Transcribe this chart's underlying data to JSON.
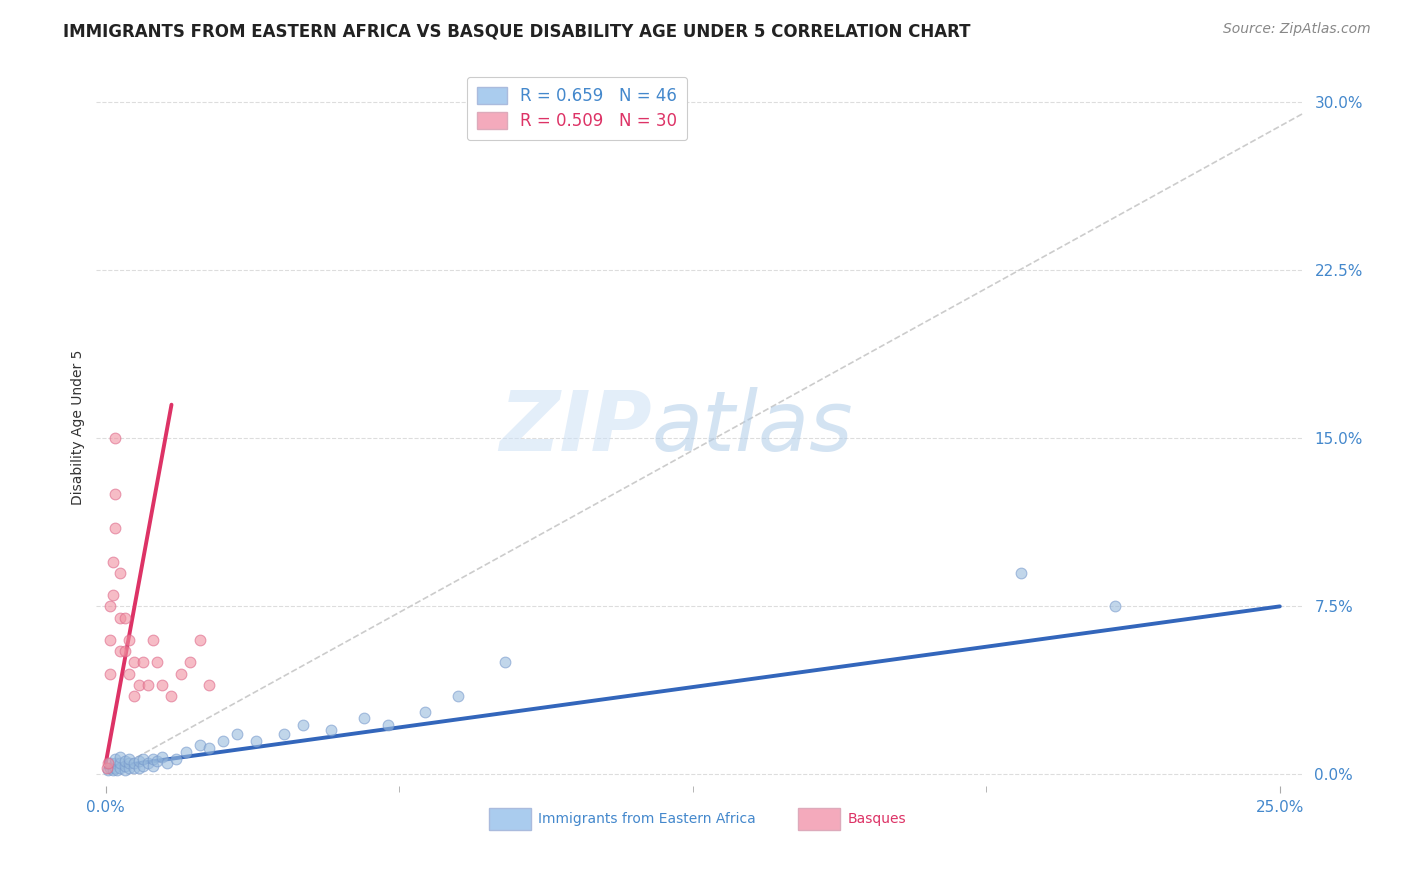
{
  "title": "IMMIGRANTS FROM EASTERN AFRICA VS BASQUE DISABILITY AGE UNDER 5 CORRELATION CHART",
  "source": "Source: ZipAtlas.com",
  "ylabel": "Disability Age Under 5",
  "ytick_labels": [
    "0.0%",
    "7.5%",
    "15.0%",
    "22.5%",
    "30.0%"
  ],
  "ytick_values": [
    0.0,
    0.075,
    0.15,
    0.225,
    0.3
  ],
  "xtick_labels": [
    "0.0%",
    "25.0%"
  ],
  "xtick_values": [
    0.0,
    0.25
  ],
  "xlim": [
    -0.002,
    0.255
  ],
  "ylim": [
    -0.005,
    0.315
  ],
  "watermark_zip": "ZIP",
  "watermark_atlas": "atlas",
  "blue_scatter_x": [
    0.0005,
    0.001,
    0.001,
    0.0015,
    0.002,
    0.002,
    0.002,
    0.0025,
    0.003,
    0.003,
    0.003,
    0.004,
    0.004,
    0.004,
    0.005,
    0.005,
    0.005,
    0.006,
    0.006,
    0.007,
    0.007,
    0.008,
    0.008,
    0.009,
    0.01,
    0.01,
    0.011,
    0.012,
    0.013,
    0.015,
    0.017,
    0.02,
    0.022,
    0.025,
    0.028,
    0.032,
    0.038,
    0.042,
    0.048,
    0.055,
    0.06,
    0.068,
    0.075,
    0.085,
    0.195,
    0.215
  ],
  "blue_scatter_y": [
    0.002,
    0.003,
    0.005,
    0.002,
    0.003,
    0.005,
    0.007,
    0.002,
    0.003,
    0.005,
    0.008,
    0.002,
    0.004,
    0.006,
    0.003,
    0.005,
    0.007,
    0.003,
    0.005,
    0.003,
    0.006,
    0.004,
    0.007,
    0.005,
    0.004,
    0.007,
    0.006,
    0.008,
    0.005,
    0.007,
    0.01,
    0.013,
    0.012,
    0.015,
    0.018,
    0.015,
    0.018,
    0.022,
    0.02,
    0.025,
    0.022,
    0.028,
    0.035,
    0.05,
    0.09,
    0.075
  ],
  "pink_scatter_x": [
    0.0003,
    0.0005,
    0.001,
    0.001,
    0.001,
    0.0015,
    0.0015,
    0.002,
    0.002,
    0.002,
    0.003,
    0.003,
    0.003,
    0.004,
    0.004,
    0.005,
    0.005,
    0.006,
    0.006,
    0.007,
    0.008,
    0.009,
    0.01,
    0.011,
    0.012,
    0.014,
    0.016,
    0.018,
    0.02,
    0.022
  ],
  "pink_scatter_y": [
    0.003,
    0.005,
    0.045,
    0.06,
    0.075,
    0.08,
    0.095,
    0.11,
    0.125,
    0.15,
    0.055,
    0.07,
    0.09,
    0.055,
    0.07,
    0.045,
    0.06,
    0.05,
    0.035,
    0.04,
    0.05,
    0.04,
    0.06,
    0.05,
    0.04,
    0.035,
    0.045,
    0.05,
    0.06,
    0.04
  ],
  "blue_line_x": [
    0.0,
    0.25
  ],
  "blue_line_y": [
    0.003,
    0.075
  ],
  "pink_line_x": [
    0.0,
    0.014
  ],
  "pink_line_y": [
    0.005,
    0.165
  ],
  "diag_line_x": [
    0.0,
    0.255
  ],
  "diag_line_y": [
    0.0,
    0.295
  ],
  "blue_color": "#99bbdd",
  "pink_color": "#f090a0",
  "blue_line_color": "#3366bb",
  "pink_line_color": "#dd3366",
  "diag_line_color": "#cccccc",
  "scatter_size": 60,
  "background_color": "#ffffff",
  "grid_color": "#dddddd",
  "title_fontsize": 12,
  "label_fontsize": 10,
  "tick_fontsize": 11,
  "source_fontsize": 10,
  "ytick_color": "#4488cc",
  "xtick_color": "#4488cc",
  "legend_label1": "R = 0.659   N = 46",
  "legend_label2": "R = 0.509   N = 30",
  "legend_color1": "#aaccee",
  "legend_color2": "#f4aabc",
  "bottom_legend_label1": "Immigrants from Eastern Africa",
  "bottom_legend_label2": "Basques"
}
